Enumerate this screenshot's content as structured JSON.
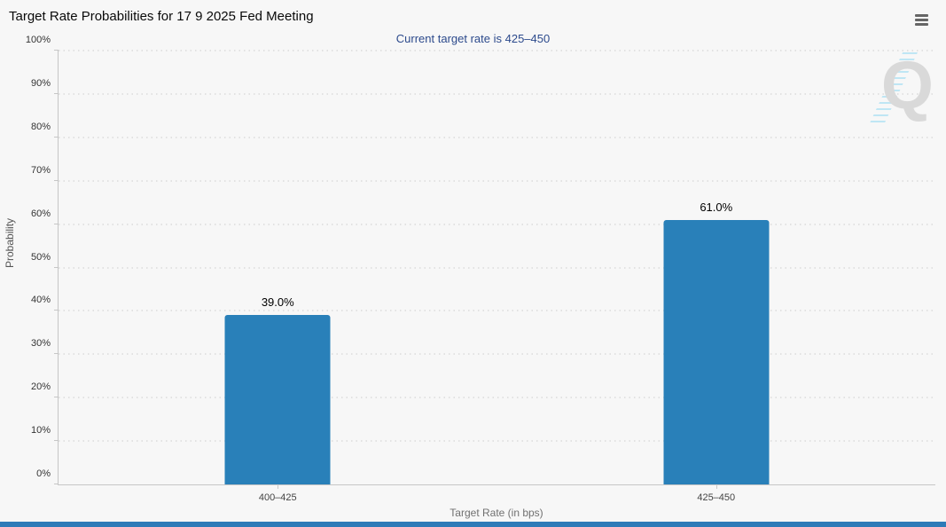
{
  "header": {
    "title": "Target Rate Probabilities for 17 9 2025 Fed Meeting",
    "menu_icon": "hamburger-icon"
  },
  "chart_data": {
    "type": "bar",
    "title": "Target Rate Probabilities for 17 9 2025 Fed Meeting",
    "subtitle": "Current target rate is 425–450",
    "categories": [
      "400–425",
      "425–450"
    ],
    "values": [
      39.0,
      61.0
    ],
    "value_labels": [
      "39.0%",
      "61.0%"
    ],
    "xlabel": "Target Rate (in bps)",
    "ylabel": "Probability",
    "ylim": [
      0,
      100
    ],
    "ytick_step": 10,
    "ytick_suffix": "%",
    "grid": "dotted horizontal gridlines, on",
    "legend": "none",
    "bar_color": "#2980b9"
  },
  "watermark": {
    "letter": "Q"
  },
  "colors": {
    "background": "#f7f7f7",
    "subtitle_text": "#2c4a8c",
    "bar_fill": "#2980b9",
    "footer_bar": "#2e7bb8",
    "gridline": "#cccccc",
    "axis_line": "#c6c6c6"
  }
}
